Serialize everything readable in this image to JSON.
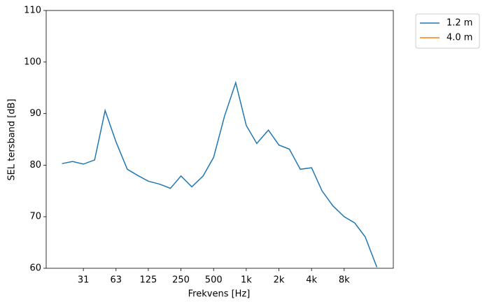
{
  "chart_data": {
    "type": "line",
    "x_label": "Frekvens [Hz]",
    "y_label": "SEL tersband [dB]",
    "x": [
      20,
      25,
      31.5,
      40,
      50,
      63,
      80,
      100,
      125,
      160,
      200,
      250,
      315,
      400,
      500,
      630,
      800,
      1000,
      1250,
      1600,
      2000,
      2500,
      3150,
      4000,
      5000,
      6300,
      8000,
      10000,
      12500,
      16000
    ],
    "series": [
      {
        "name": "1.2 m",
        "color": "#1f77b4",
        "values": [
          80.3,
          80.7,
          80.2,
          81.0,
          90.6,
          84.5,
          79.2,
          78.0,
          76.9,
          76.3,
          75.5,
          77.9,
          75.8,
          77.9,
          81.5,
          89.5,
          96.0,
          87.7,
          84.2,
          86.8,
          83.9,
          83.1,
          79.2,
          79.5,
          75.0,
          72.1,
          70.0,
          68.8,
          66.1,
          60.2
        ]
      },
      {
        "name": "4.0 m",
        "color": "#ff7f0e",
        "values": [
          null,
          null,
          null,
          null,
          null,
          null,
          null,
          null,
          null,
          null,
          null,
          null,
          null,
          null,
          null,
          null,
          null,
          null,
          null,
          null,
          null,
          null,
          null,
          null,
          null,
          null,
          null,
          null,
          null,
          null
        ]
      }
    ],
    "x_scale": "log",
    "xlim": [
      14.3,
      22700
    ],
    "xticks": [
      {
        "value": 31.5,
        "label": "31"
      },
      63,
      125,
      250,
      500,
      {
        "value": 1000,
        "label": "1k"
      },
      {
        "value": 2000,
        "label": "2k"
      },
      {
        "value": 4000,
        "label": "4k"
      },
      {
        "value": 8000,
        "label": "8k"
      }
    ],
    "ylim": [
      60,
      110
    ],
    "yticks": [
      60,
      70,
      80,
      90,
      100,
      110
    ],
    "legend": "outside-upper-right"
  }
}
